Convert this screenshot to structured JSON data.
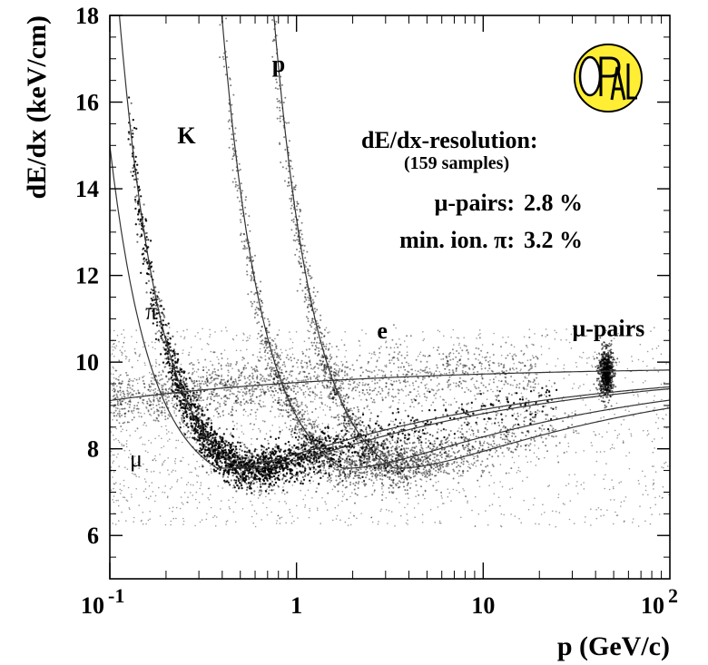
{
  "chart_data": {
    "type": "scatter",
    "title": "",
    "xlabel": "p (GeV/c)",
    "ylabel": "dE/dx (keV/cm)",
    "xscale": "log",
    "xlim": [
      0.1,
      100
    ],
    "ylim": [
      5,
      18
    ],
    "x_ticks": [
      {
        "value": 0.1,
        "base": "10",
        "exp": "-1"
      },
      {
        "value": 1,
        "base": "1",
        "exp": ""
      },
      {
        "value": 10,
        "base": "10",
        "exp": ""
      },
      {
        "value": 100,
        "base": "10",
        "exp": "2"
      }
    ],
    "y_ticks": [
      {
        "value": 6,
        "label": "6"
      },
      {
        "value": 8,
        "label": "8"
      },
      {
        "value": 10,
        "label": "10"
      },
      {
        "value": 12,
        "label": "12"
      },
      {
        "value": 14,
        "label": "14"
      },
      {
        "value": 16,
        "label": "16"
      },
      {
        "value": 18,
        "label": "18"
      }
    ],
    "grid": false,
    "curve_labels": [
      {
        "text": "K",
        "x": 0.23,
        "y": 15.05,
        "bold": true
      },
      {
        "text": "p",
        "x": 0.74,
        "y": 16.7,
        "bold": true
      },
      {
        "text": "π",
        "x": 0.155,
        "y": 11.0,
        "bold": false
      },
      {
        "text": "e",
        "x": 2.7,
        "y": 10.55,
        "bold": true
      },
      {
        "text": "μ",
        "x": 0.128,
        "y": 7.6,
        "bold": false
      },
      {
        "text": "μ-pairs",
        "x": 30,
        "y": 10.6,
        "bold": true
      }
    ],
    "annotations": {
      "resolution_title": "dE/dx-resolution:",
      "samples": "(159 samples)",
      "mu_pairs_label": "μ-pairs:",
      "mu_pairs_value": "2.8 %",
      "min_ion_label": "min. ion. π:",
      "min_ion_value": "3.2 %"
    },
    "logo": {
      "name": "opal-logo",
      "text": "OPAL",
      "fill": "#ffee33"
    },
    "colors": {
      "points": "#000000",
      "curves": "#333333",
      "logo_fill": "#ffee33"
    }
  }
}
